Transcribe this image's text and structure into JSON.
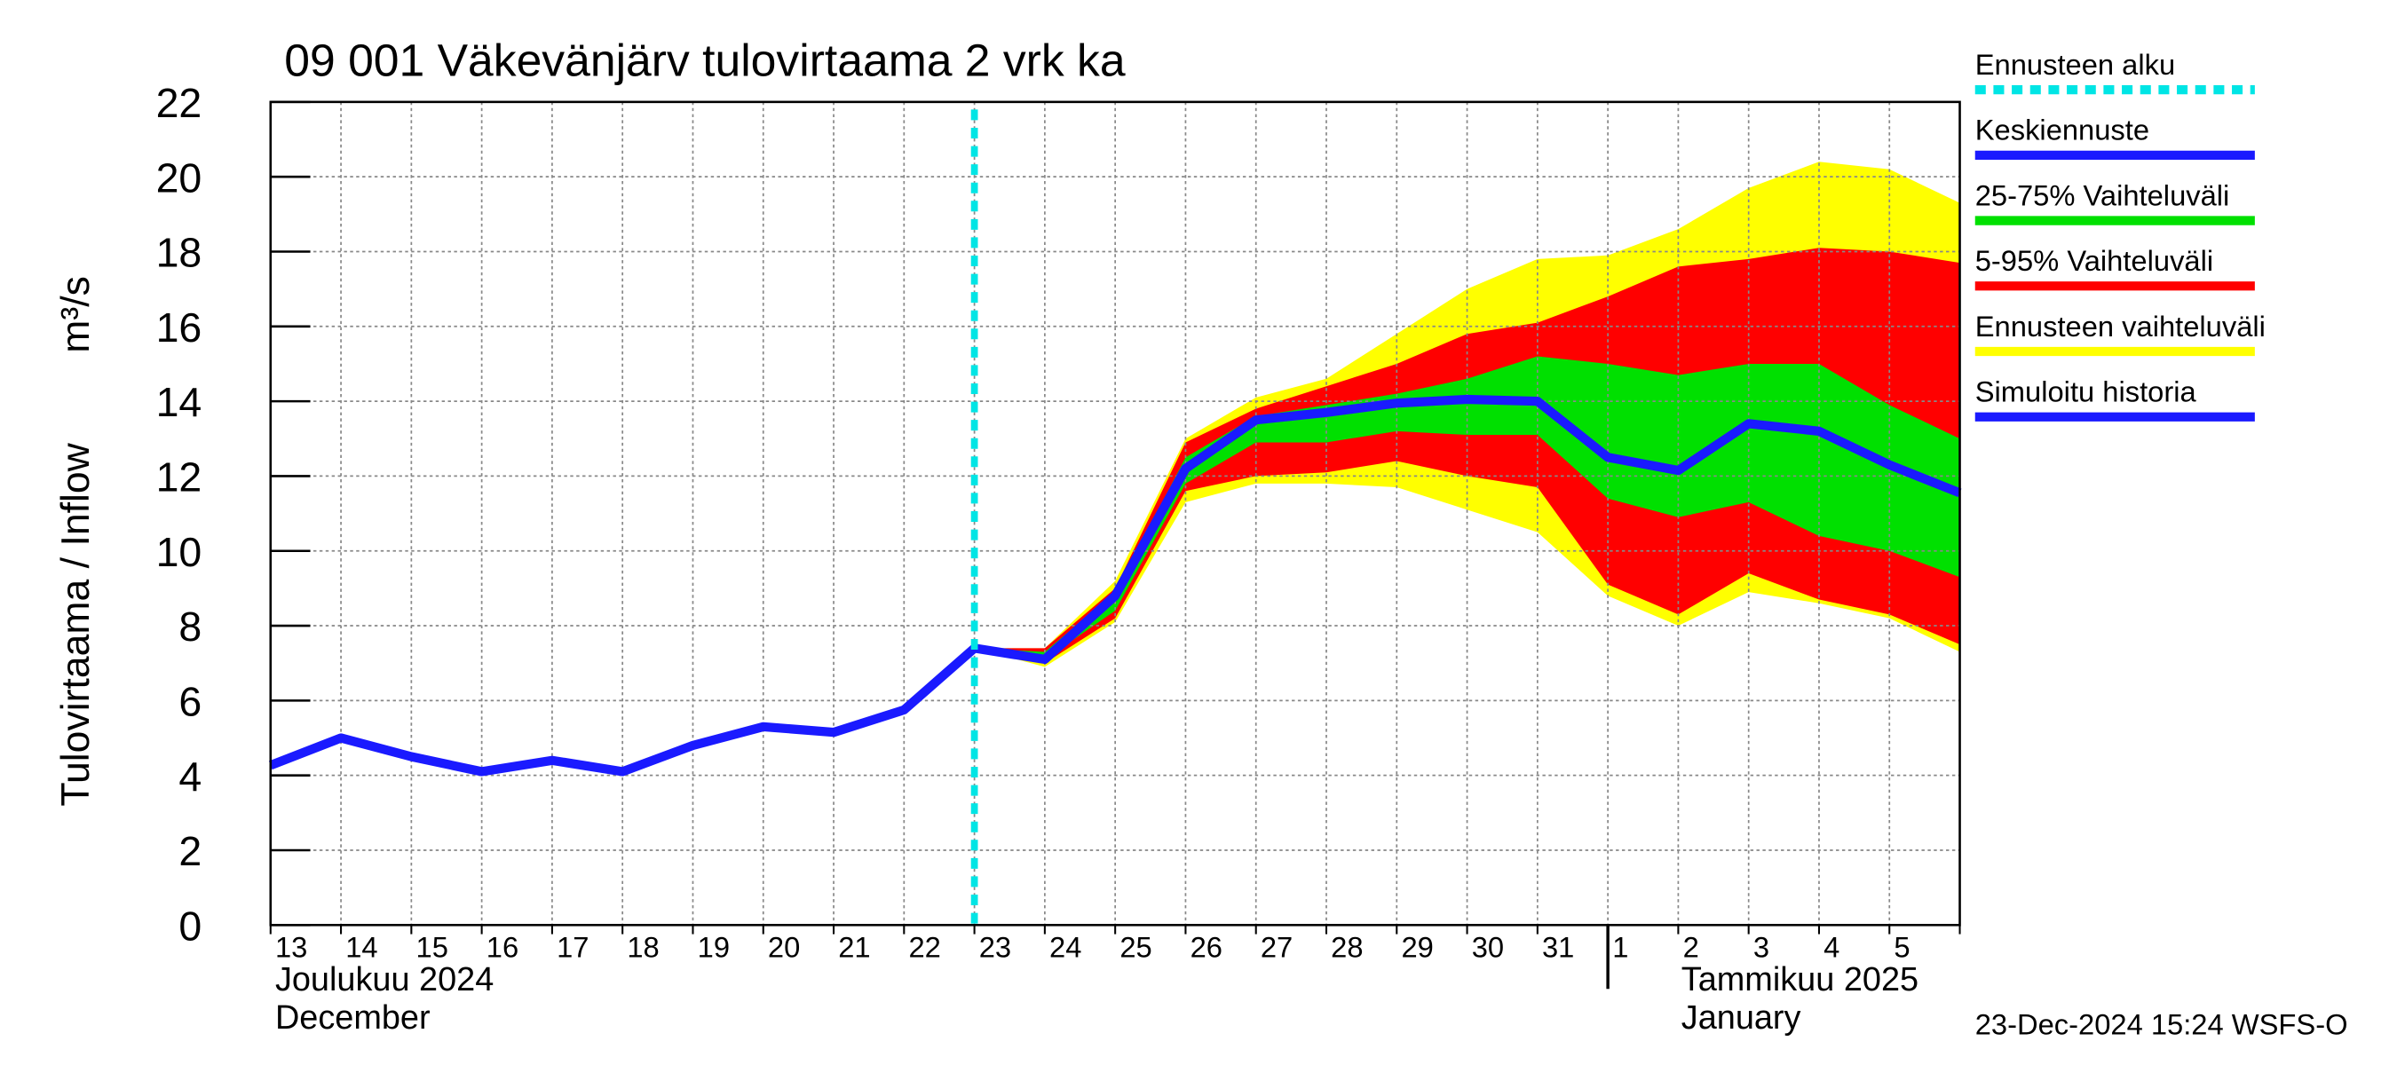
{
  "chart_data": {
    "type": "line",
    "title": "09 001 Väkevänjärv tulovirtaama 2 vrk ka",
    "ylabel": "Tulovirtaama / Inflow",
    "yunit": "m³/s",
    "categories": [
      "13",
      "14",
      "15",
      "16",
      "17",
      "18",
      "19",
      "20",
      "21",
      "22",
      "23",
      "24",
      "25",
      "26",
      "27",
      "28",
      "29",
      "30",
      "31",
      "1",
      "2",
      "3",
      "4",
      "5",
      null
    ],
    "month_labels": [
      {
        "at": "13",
        "lines": [
          "Joulukuu  2024",
          "December"
        ]
      },
      {
        "at": "1",
        "lines": [
          "Tammikuu  2025",
          "January"
        ]
      }
    ],
    "ylim": [
      0,
      22
    ],
    "yticks": [
      0,
      2,
      4,
      6,
      8,
      10,
      12,
      14,
      16,
      18,
      20,
      22
    ],
    "grid": true,
    "legend": "right",
    "timestamp": "23-Dec-2024 15:24 WSFS-O",
    "series": [
      {
        "name": "Ennusteen alku",
        "color": "#00e5e5",
        "kind": "vline",
        "at": "23"
      },
      {
        "name": "Keskiennuste",
        "color": "#1a1aff",
        "kind": "line",
        "values": [
          null,
          null,
          null,
          null,
          null,
          null,
          null,
          null,
          null,
          null,
          7.4,
          7.1,
          8.8,
          12.2,
          13.5,
          13.7,
          13.95,
          14.05,
          14.0,
          12.5,
          12.15,
          13.4,
          13.2,
          12.3,
          11.55
        ]
      },
      {
        "name": "25-75% Vaihteluväli",
        "color": "#00e000",
        "kind": "band",
        "values": [
          null,
          null,
          null,
          null,
          null,
          null,
          null,
          null,
          null,
          null,
          7.4,
          7.3,
          8.9,
          12.5,
          13.6,
          13.9,
          14.2,
          14.6,
          15.2,
          15.0,
          14.7,
          15.0,
          15.0,
          13.9,
          13.0
        ],
        "lower": [
          null,
          null,
          null,
          null,
          null,
          null,
          null,
          null,
          null,
          null,
          7.4,
          7.1,
          8.4,
          11.8,
          12.9,
          12.9,
          13.2,
          13.1,
          13.1,
          11.4,
          10.9,
          11.3,
          10.4,
          10.0,
          9.3
        ]
      },
      {
        "name": "5-95% Vaihteluväli",
        "color": "#ff0000",
        "kind": "band",
        "values": [
          null,
          null,
          null,
          null,
          null,
          null,
          null,
          null,
          null,
          null,
          7.4,
          7.4,
          9.0,
          12.9,
          13.8,
          14.4,
          15.0,
          15.8,
          16.1,
          16.8,
          17.6,
          17.8,
          18.1,
          18.0,
          17.7
        ],
        "lower": [
          null,
          null,
          null,
          null,
          null,
          null,
          null,
          null,
          null,
          null,
          7.4,
          7.0,
          8.2,
          11.6,
          12.0,
          12.1,
          12.4,
          12.0,
          11.7,
          9.1,
          8.3,
          9.4,
          8.7,
          8.3,
          7.5
        ]
      },
      {
        "name": "Ennusteen vaihteluväli",
        "color": "#ffff00",
        "kind": "band",
        "values": [
          null,
          null,
          null,
          null,
          null,
          null,
          null,
          null,
          null,
          null,
          7.4,
          7.4,
          9.2,
          13.0,
          14.1,
          14.6,
          15.8,
          17.0,
          17.8,
          17.9,
          18.6,
          19.7,
          20.4,
          20.2,
          19.3
        ],
        "lower": [
          null,
          null,
          null,
          null,
          null,
          null,
          null,
          null,
          null,
          null,
          7.4,
          6.9,
          8.1,
          11.3,
          11.8,
          11.8,
          11.7,
          11.1,
          10.5,
          8.8,
          8.0,
          8.9,
          8.6,
          8.2,
          7.3
        ]
      },
      {
        "name": "Simuloitu historia",
        "color": "#1a1aff",
        "kind": "line",
        "values": [
          4.27,
          5.0,
          4.5,
          4.1,
          4.4,
          4.1,
          4.8,
          5.3,
          5.15,
          5.75,
          7.4,
          null,
          null,
          null,
          null,
          null,
          null,
          null,
          null,
          null,
          null,
          null,
          null,
          null,
          null
        ]
      }
    ]
  }
}
